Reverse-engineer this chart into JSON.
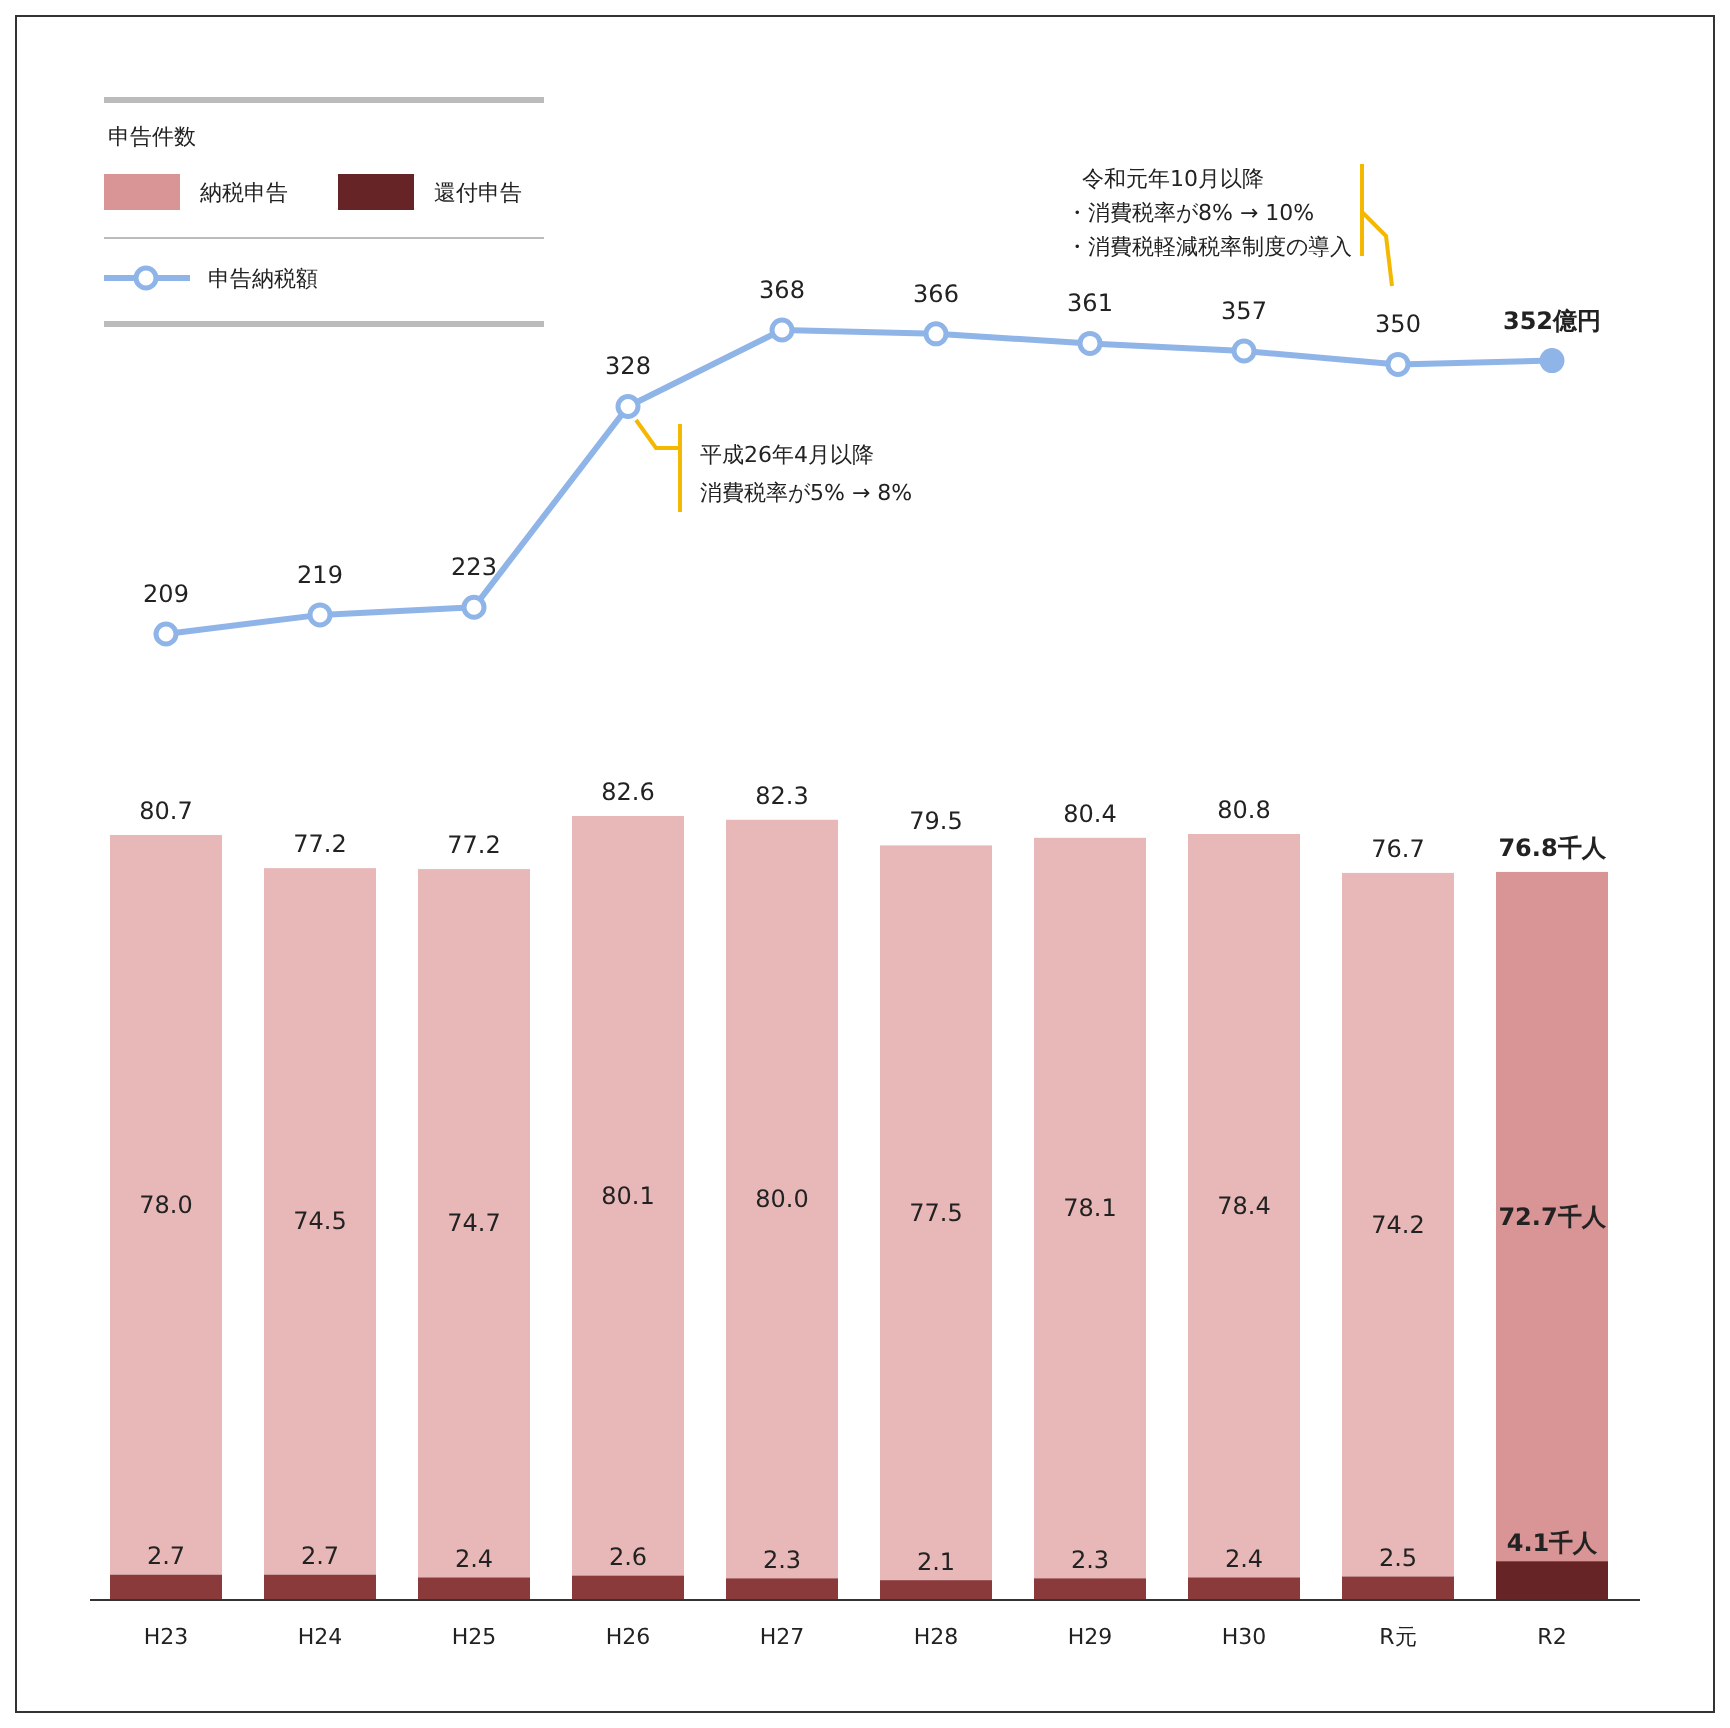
{
  "chart_data": [
    {
      "type": "line",
      "legend": "top left",
      "marker": "circle",
      "categories": [
        null,
        null,
        null,
        null,
        null,
        null,
        null,
        null,
        null,
        null
      ],
      "series": [
        {
          "name": "申告納税額",
          "color": "#8fb4e8",
          "values": [
            209,
            219,
            223,
            328,
            368,
            366,
            361,
            357,
            350,
            352
          ],
          "value_labels": [
            "209",
            "219",
            "223",
            "328",
            "368",
            "366",
            "361",
            "357",
            "350",
            "352億円"
          ]
        }
      ],
      "annotations": [
        "平成26年4月以降",
        "消費税率が5% → 8%",
        "令和元年10月以降",
        "・消費税率が8% → 10%",
        "・消費税軽減税率制度の導入"
      ]
    },
    {
      "type": "bar",
      "stacked": true,
      "legend": "top left",
      "legend_title": "申告件数",
      "categories": [
        "H23",
        "H24",
        "H25",
        "H26",
        "H27",
        "H28",
        "H29",
        "H30",
        "R元",
        "R2"
      ],
      "series": [
        {
          "name": "還付申告",
          "color": "#662427",
          "colors": [
            "#8b3a3c",
            "#8b3a3c",
            "#8b3a3c",
            "#8b3a3c",
            "#8b3a3c",
            "#8b3a3c",
            "#8b3a3c",
            "#8b3a3c",
            "#8b3a3c",
            "#662427"
          ],
          "values": [
            2.7,
            2.7,
            2.4,
            2.6,
            2.3,
            2.1,
            2.3,
            2.4,
            2.5,
            4.1
          ],
          "value_labels": [
            "2.7",
            "2.7",
            "2.4",
            "2.6",
            "2.3",
            "2.1",
            "2.3",
            "2.4",
            "2.5",
            "4.1千人"
          ]
        },
        {
          "name": "納税申告",
          "color": "#d99595",
          "colors": [
            "#e8b8b8",
            "#e8b8b8",
            "#e8b8b8",
            "#e8b8b8",
            "#e8b8b8",
            "#e8b8b8",
            "#e8b8b8",
            "#e8b8b8",
            "#e8b8b8",
            "#d99595"
          ],
          "values": [
            78.0,
            74.5,
            74.7,
            80.1,
            80.0,
            77.5,
            78.1,
            78.4,
            74.2,
            72.7
          ],
          "value_labels": [
            "78.0",
            "74.5",
            "74.7",
            "80.1",
            "80.0",
            "77.5",
            "78.1",
            "78.4",
            "74.2",
            "72.7千人"
          ]
        }
      ],
      "totals": [
        "80.7",
        "77.2",
        "77.2",
        "82.6",
        "82.3",
        "79.5",
        "80.4",
        "80.8",
        "76.7",
        "76.8千人"
      ]
    }
  ]
}
